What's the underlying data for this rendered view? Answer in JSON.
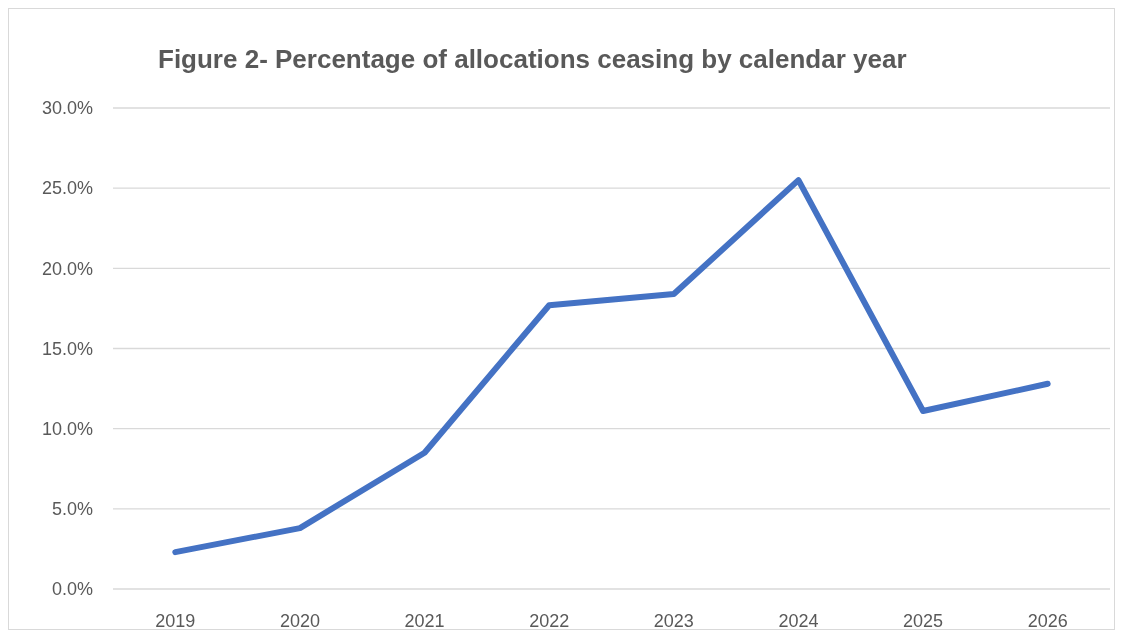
{
  "chart_data": {
    "type": "line",
    "title": "Figure 2- Percentage of allocations ceasing by calendar year",
    "categories": [
      "2019",
      "2020",
      "2021",
      "2022",
      "2023",
      "2024",
      "2025",
      "2026"
    ],
    "series": [
      {
        "color": "#4472c4",
        "values": [
          2.3,
          3.8,
          8.5,
          17.7,
          18.4,
          25.5,
          11.1,
          12.8
        ]
      }
    ],
    "ylim": [
      0,
      30
    ],
    "yticks": [
      {
        "value": 0,
        "label": "0.0%"
      },
      {
        "value": 5,
        "label": "5.0%"
      },
      {
        "value": 10,
        "label": "10.0%"
      },
      {
        "value": 15,
        "label": "15.0%"
      },
      {
        "value": 20,
        "label": "20.0%"
      },
      {
        "value": 25,
        "label": "25.0%"
      },
      {
        "value": 30,
        "label": "30.0%"
      }
    ],
    "grid": "y",
    "marker": "none",
    "line_style": "solid"
  }
}
